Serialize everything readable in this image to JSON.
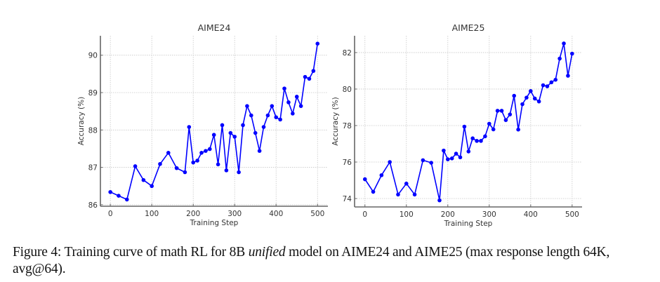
{
  "chart_data": [
    {
      "type": "line",
      "title": "AIME24",
      "xlabel": "Training Step",
      "ylabel": "Accuracy (%)",
      "xlim": [
        -24,
        525
      ],
      "ylim": [
        85.96,
        90.52
      ],
      "xticks": [
        0,
        100,
        200,
        300,
        400,
        500
      ],
      "yticks": [
        86,
        87,
        88,
        89,
        90
      ],
      "grid": true,
      "color": "#0000ff",
      "marker": "circle",
      "x": [
        0,
        20,
        40,
        60,
        80,
        100,
        120,
        140,
        160,
        180,
        190,
        200,
        210,
        220,
        230,
        240,
        250,
        260,
        270,
        280,
        290,
        300,
        310,
        320,
        330,
        340,
        350,
        360,
        370,
        380,
        390,
        400,
        410,
        420,
        430,
        440,
        450,
        460,
        470,
        480,
        490,
        500
      ],
      "values": [
        86.34,
        86.24,
        86.14,
        87.03,
        86.66,
        86.5,
        87.09,
        87.39,
        86.98,
        86.87,
        88.08,
        87.13,
        87.18,
        87.39,
        87.44,
        87.49,
        87.87,
        87.08,
        88.13,
        86.92,
        87.92,
        87.82,
        86.87,
        88.13,
        88.64,
        88.39,
        87.92,
        87.44,
        88.08,
        88.39,
        88.64,
        88.34,
        88.28,
        89.11,
        88.74,
        88.44,
        88.89,
        88.64,
        89.42,
        89.37,
        89.58,
        90.31
      ]
    },
    {
      "type": "line",
      "title": "AIME25",
      "xlabel": "Training Step",
      "ylabel": "Accuracy (%)",
      "xlim": [
        -25,
        524
      ],
      "ylim": [
        73.54,
        82.92
      ],
      "xticks": [
        0,
        100,
        200,
        300,
        400,
        500
      ],
      "yticks": [
        74,
        76,
        78,
        80,
        82
      ],
      "grid": true,
      "color": "#0000ff",
      "marker": "circle",
      "x": [
        0,
        20,
        40,
        60,
        80,
        100,
        120,
        140,
        160,
        180,
        190,
        200,
        210,
        220,
        230,
        240,
        250,
        260,
        270,
        280,
        290,
        300,
        310,
        320,
        330,
        340,
        350,
        360,
        370,
        380,
        390,
        400,
        410,
        420,
        430,
        440,
        450,
        460,
        470,
        480,
        490,
        500
      ],
      "values": [
        75.06,
        74.37,
        75.28,
        76.0,
        74.22,
        74.82,
        74.22,
        76.1,
        75.96,
        73.9,
        76.63,
        76.15,
        76.2,
        76.46,
        76.26,
        77.94,
        76.58,
        77.3,
        77.16,
        77.16,
        77.41,
        78.1,
        77.79,
        78.81,
        78.81,
        78.3,
        78.61,
        79.63,
        77.78,
        79.17,
        79.53,
        79.89,
        79.48,
        79.32,
        80.21,
        80.15,
        80.37,
        80.51,
        81.67,
        82.5,
        80.73,
        81.94
      ]
    }
  ],
  "caption": {
    "prefix": "Figure 4: Training curve of math RL for 8B ",
    "emphasis": "unified",
    "suffix": " model on AIME24 and AIME25 (max response length 64K, avg@64)."
  }
}
